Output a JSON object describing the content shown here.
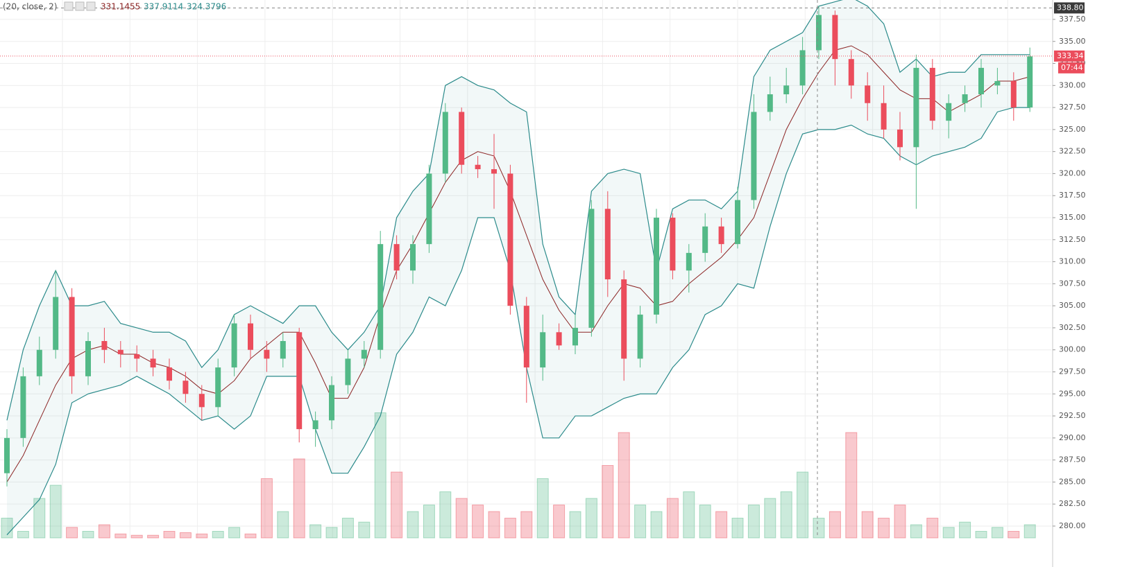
{
  "chart_data": {
    "type": "candlestick",
    "indicator": {
      "label": "(20, close, 2)",
      "values": [
        331.1455,
        337.9114,
        324.3796
      ],
      "colors": [
        "#8b2323",
        "#2a8a8a",
        "#2a8a8a"
      ]
    },
    "ylim": [
      278.66,
      339.7
    ],
    "yticks": [
      {
        "value": 280,
        "label": "280.00"
      },
      {
        "value": 282.5,
        "label": "282.50"
      },
      {
        "value": 285,
        "label": "285.00"
      },
      {
        "value": 287.5,
        "label": "287.50"
      },
      {
        "value": 290,
        "label": "290.00"
      },
      {
        "value": 292.5,
        "label": "292.50"
      },
      {
        "value": 295,
        "label": "295.00"
      },
      {
        "value": 297.5,
        "label": "297.50"
      },
      {
        "value": 300,
        "label": "300.00"
      },
      {
        "value": 302.5,
        "label": "302.50"
      },
      {
        "value": 305,
        "label": "305.00"
      },
      {
        "value": 307.5,
        "label": "307.50"
      },
      {
        "value": 310,
        "label": "310.00"
      },
      {
        "value": 312.5,
        "label": "312.50"
      },
      {
        "value": 315,
        "label": "315.00"
      },
      {
        "value": 317.5,
        "label": "317.50"
      },
      {
        "value": 320,
        "label": "320.00"
      },
      {
        "value": 322.5,
        "label": "322.50"
      },
      {
        "value": 325,
        "label": "325.00"
      },
      {
        "value": 327.5,
        "label": "327.50"
      },
      {
        "value": 330,
        "label": "330.00"
      },
      {
        "value": 332.5,
        "label": "332.50"
      },
      {
        "value": 335,
        "label": "335.00"
      },
      {
        "value": 337.5,
        "label": "337.50"
      }
    ],
    "grid": true,
    "up_color": "#53b987",
    "down_color": "#eb4d5c",
    "open": [
      286,
      290,
      297,
      300,
      306,
      297,
      301,
      300,
      299.5,
      299,
      298,
      296.5,
      295,
      293.5,
      298,
      303,
      300,
      299,
      302,
      291,
      292,
      296,
      299,
      300,
      312,
      309,
      312,
      320,
      327,
      321,
      320.5,
      320,
      305,
      298,
      302,
      300.5,
      302.5,
      316,
      308,
      299,
      304,
      315,
      309,
      311,
      314,
      312,
      317,
      327,
      329,
      330,
      334,
      338,
      333,
      330,
      328,
      325,
      323,
      332,
      326,
      328,
      329,
      330,
      330.5,
      327.5
    ],
    "high": [
      291,
      298,
      301.5,
      309,
      307,
      302,
      302.5,
      301,
      300.5,
      300,
      299,
      297.5,
      296,
      299,
      304,
      304,
      301,
      302,
      302.5,
      293,
      297,
      300,
      301,
      313.5,
      313,
      313,
      321,
      328,
      327.5,
      322,
      324.5,
      321,
      306,
      304,
      303,
      304,
      317,
      318,
      309,
      305,
      316,
      315.5,
      312,
      315.5,
      315,
      318.5,
      329,
      331,
      332,
      335.5,
      339,
      338.5,
      334,
      331.5,
      330,
      327,
      333.5,
      333,
      329,
      330,
      333,
      332,
      331.5,
      334.3
    ],
    "low": [
      284.5,
      289,
      296,
      299,
      295,
      296,
      298.5,
      298,
      297.5,
      297,
      295.5,
      294,
      292,
      292.5,
      297,
      299,
      297.5,
      298,
      289.5,
      289,
      291,
      295,
      298,
      299,
      308,
      307.5,
      311,
      319,
      320,
      319.5,
      316,
      304,
      294,
      296.5,
      300,
      299.5,
      301.5,
      306,
      296.5,
      298,
      303,
      308,
      306.5,
      310,
      311,
      311.5,
      316,
      326,
      328,
      329,
      333,
      330,
      328.5,
      326,
      324,
      321.5,
      316,
      325,
      324,
      327,
      327.5,
      329,
      326,
      327
    ],
    "close": [
      290,
      297,
      300,
      306,
      297,
      301,
      300,
      299.5,
      299,
      298,
      296.5,
      295,
      293.5,
      298,
      303,
      300,
      299,
      301,
      291,
      292,
      296,
      299,
      300,
      312,
      309,
      312,
      320,
      327,
      321,
      320.5,
      320,
      305,
      298,
      302,
      300.5,
      302.5,
      316,
      308,
      299,
      304,
      315,
      309,
      311,
      314,
      312,
      317,
      327,
      329,
      330,
      334,
      338,
      333,
      330,
      328,
      325,
      323,
      332,
      326,
      328,
      329,
      332,
      330.5,
      327.5,
      333.3
    ],
    "bands": {
      "upper": [
        292,
        300,
        305,
        309,
        305,
        305,
        305.5,
        303,
        302.5,
        302,
        302,
        301,
        298,
        300,
        304,
        305,
        304,
        303,
        305,
        305,
        302,
        300,
        302,
        305,
        315,
        318,
        320,
        330,
        331,
        330,
        329.5,
        328,
        327,
        312,
        306,
        304,
        318,
        320,
        320.5,
        320,
        309,
        316,
        317,
        317,
        316,
        318,
        331,
        334,
        335,
        336,
        339,
        339.5,
        340,
        339,
        337,
        331.5,
        333,
        331,
        331.5,
        331.5,
        333.5,
        333.5,
        333.5,
        333.5
      ],
      "middle": [
        285,
        288,
        292,
        296,
        299,
        300,
        300.5,
        299.5,
        299.5,
        298.5,
        298,
        297,
        295.5,
        295,
        296.5,
        299,
        300.5,
        302,
        302,
        298.5,
        294.5,
        294.5,
        298,
        304,
        309,
        312,
        315.5,
        319,
        321.5,
        322.5,
        322,
        318,
        313,
        308,
        304.5,
        302,
        302,
        305,
        307.5,
        307,
        305,
        305.5,
        307.5,
        309,
        310.5,
        312.5,
        315,
        320,
        325,
        328.5,
        331.5,
        334,
        334.5,
        333.5,
        331.5,
        329.5,
        328.5,
        328.5,
        327,
        328,
        329,
        330.5,
        330.5,
        331
      ],
      "lower": [
        279,
        281,
        283,
        287,
        294,
        295,
        295.5,
        296,
        297,
        296,
        295,
        293.5,
        292,
        292.5,
        291,
        292.5,
        297,
        297,
        297,
        291,
        286,
        286,
        289,
        292.5,
        299.5,
        302,
        306,
        305,
        309,
        315,
        315,
        309,
        298,
        290,
        290,
        292.5,
        292.5,
        293.5,
        294.5,
        295,
        295,
        298,
        300,
        304,
        305,
        307.5,
        307,
        314,
        320,
        324.5,
        325,
        325,
        325.5,
        324.5,
        324,
        322,
        321,
        322,
        322.5,
        323,
        324,
        327,
        327.5,
        327.5
      ],
      "band_color": "#2a8a8a",
      "middle_color": "#8b2323"
    },
    "volume": [
      15,
      5,
      30,
      40,
      8,
      5,
      10,
      3,
      2,
      2,
      5,
      4,
      3,
      5,
      8,
      3,
      45,
      20,
      60,
      10,
      8,
      15,
      12,
      95,
      50,
      20,
      25,
      35,
      30,
      25,
      20,
      15,
      20,
      45,
      25,
      20,
      30,
      55,
      80,
      25,
      20,
      30,
      35,
      25,
      20,
      15,
      25,
      30,
      35,
      50,
      15,
      20,
      80,
      20,
      15,
      25,
      10,
      15,
      8,
      12,
      5,
      8,
      5,
      10
    ],
    "volume_ylim": [
      0,
      100
    ],
    "high_line": {
      "value": 338.8,
      "label": "338.80"
    },
    "last_price": {
      "value": 333.34,
      "label": "333.34"
    },
    "countdown": "07:44"
  }
}
